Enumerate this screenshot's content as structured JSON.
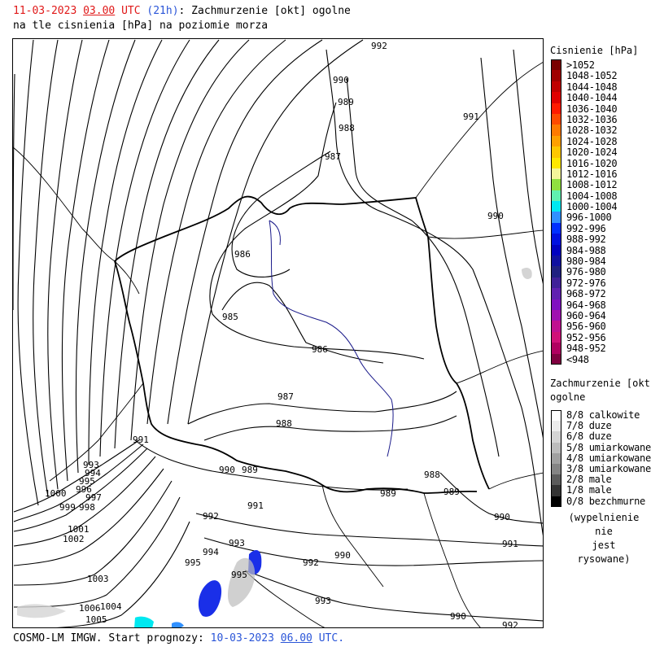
{
  "header": {
    "date": "11-03-2023",
    "hour": "03.00",
    "tz": "UTC",
    "lead": "(21h)",
    "title_rest": ": Zachmurzenie [okt] ogolne",
    "line2": "na tle cisnienia [hPa] na poziomie morza"
  },
  "footer": {
    "model": "COSMO-LM IMGW. Start prognozy: ",
    "start_date": "10-03-2023",
    "start_hour": "06.00",
    "tz": "UTC."
  },
  "pressure_legend": {
    "title": "Cisnienie [hPa]",
    "items": [
      {
        "label": ">1052",
        "color": "#7a0000"
      },
      {
        "label": "1048-1052",
        "color": "#a00000"
      },
      {
        "label": "1044-1048",
        "color": "#c00000"
      },
      {
        "label": "1040-1044",
        "color": "#e00000"
      },
      {
        "label": "1036-1040",
        "color": "#ff1a00"
      },
      {
        "label": "1032-1036",
        "color": "#ff4a00"
      },
      {
        "label": "1028-1032",
        "color": "#ff7a00"
      },
      {
        "label": "1024-1028",
        "color": "#ffa000"
      },
      {
        "label": "1020-1024",
        "color": "#ffc800"
      },
      {
        "label": "1016-1020",
        "color": "#ffe800"
      },
      {
        "label": "1012-1016",
        "color": "#f4f59a"
      },
      {
        "label": "1008-1012",
        "color": "#90e040"
      },
      {
        "label": "1004-1008",
        "color": "#60f0b0"
      },
      {
        "label": "1000-1004",
        "color": "#00e8f0"
      },
      {
        "label": "996-1000",
        "color": "#3090ff"
      },
      {
        "label": "992-996",
        "color": "#0030ff"
      },
      {
        "label": "988-992",
        "color": "#0010e0"
      },
      {
        "label": "984-988",
        "color": "#0000c0"
      },
      {
        "label": "980-984",
        "color": "#1010a0"
      },
      {
        "label": "976-980",
        "color": "#202080"
      },
      {
        "label": "972-976",
        "color": "#402098"
      },
      {
        "label": "968-972",
        "color": "#6020b0"
      },
      {
        "label": "964-968",
        "color": "#8010c0"
      },
      {
        "label": "960-964",
        "color": "#a010b0"
      },
      {
        "label": "956-960",
        "color": "#c01090"
      },
      {
        "label": "952-956",
        "color": "#d01078"
      },
      {
        "label": "948-952",
        "color": "#b00060"
      },
      {
        "label": "<948",
        "color": "#800040"
      }
    ]
  },
  "cloud_legend": {
    "title_line1": "Zachmurzenie [okt]",
    "title_line2": "ogolne",
    "items": [
      {
        "label": "8/8 calkowite",
        "color": "#ffffff"
      },
      {
        "label": "7/8 duze",
        "color": "#ececec"
      },
      {
        "label": "6/8 duze",
        "color": "#d4d4d4"
      },
      {
        "label": "5/8 umiarkowane",
        "color": "#bcbcbc"
      },
      {
        "label": "4/8 umiarkowane",
        "color": "#a0a0a0"
      },
      {
        "label": "3/8 umiarkowane",
        "color": "#848484"
      },
      {
        "label": "2/8 male",
        "color": "#5c5c5c"
      },
      {
        "label": "1/8 male",
        "color": "#343434"
      },
      {
        "label": "0/8 bezchmurne",
        "color": "#000000"
      }
    ],
    "note_line1": "(wypelnienie nie",
    "note_line2": "jest rysowane)"
  },
  "isobar_labels": [
    "992",
    "990",
    "989",
    "988",
    "987",
    "991",
    "990",
    "986",
    "985",
    "986",
    "987",
    "988",
    "991",
    "990",
    "989",
    "988",
    "989",
    "989",
    "990",
    "991",
    "992",
    "991",
    "993",
    "994",
    "995",
    "995",
    "992",
    "990",
    "993",
    "990",
    "992",
    "993",
    "994",
    "995",
    "996",
    "997",
    "998",
    "999",
    "1000",
    "1001",
    "1002",
    "1003",
    "1004",
    "1005",
    "1006"
  ]
}
